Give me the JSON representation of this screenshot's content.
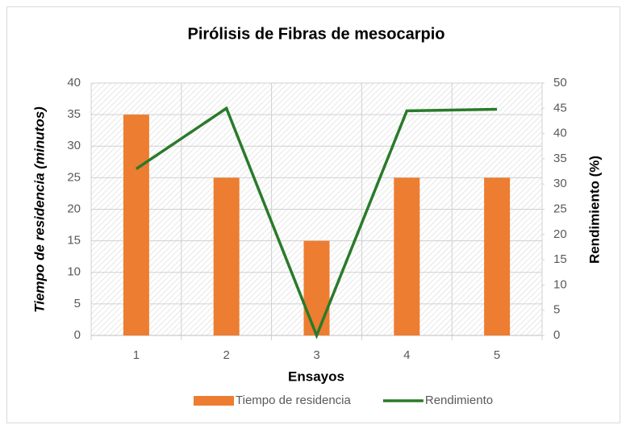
{
  "chart_data": {
    "type": "bar",
    "title": "Pirólisis de Fibras de mesocarpio",
    "x_label": "Ensayos",
    "y_label": "Tiempo de residencia (minutos)",
    "y2_label": "Rendimiento (%)",
    "categories": [
      "1",
      "2",
      "3",
      "4",
      "5"
    ],
    "series": [
      {
        "name": "Tiempo de residencia",
        "type": "bar",
        "color": "#ed7d31",
        "values": [
          35,
          25,
          15,
          25,
          25
        ]
      },
      {
        "name": "Rendimiento",
        "type": "line",
        "axis": "y2",
        "color": "#2a7a2a",
        "values": [
          33,
          45,
          0,
          44.5,
          44.8
        ]
      }
    ],
    "ylim": [
      0,
      40
    ],
    "yticks": [
      0,
      5,
      10,
      15,
      20,
      25,
      30,
      35,
      40
    ],
    "y2lim": [
      0,
      50
    ],
    "y2ticks": [
      0,
      5,
      10,
      15,
      20,
      25,
      30,
      35,
      40,
      45,
      50
    ],
    "grid": true,
    "legend": "bottom"
  }
}
